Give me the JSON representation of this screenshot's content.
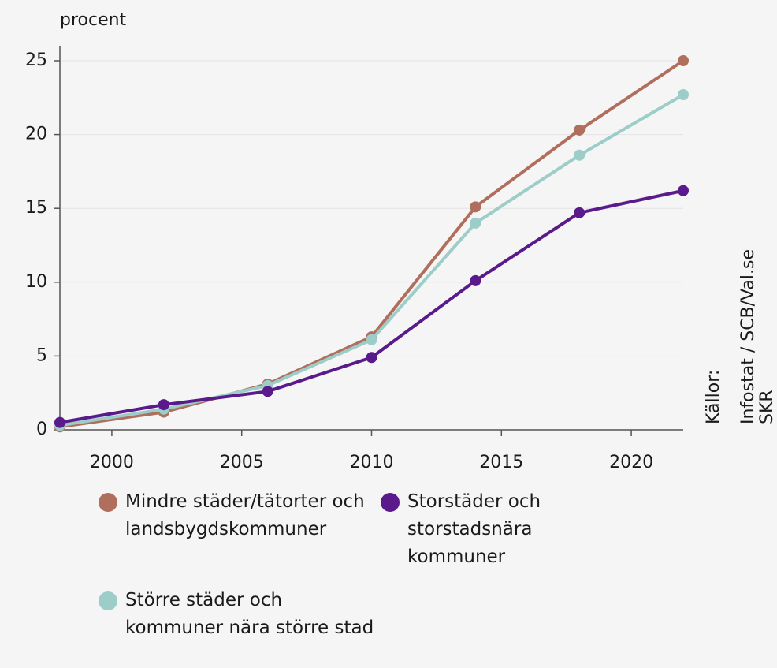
{
  "chart_data": {
    "type": "line",
    "y_label": "procent",
    "source": [
      "Källor:",
      "Infostat / SCB/Val.se",
      "SKR"
    ],
    "x": [
      1998,
      2002,
      2006,
      2010,
      2014,
      2018,
      2022
    ],
    "xlim": [
      1998,
      2022
    ],
    "xticks": [
      2000,
      2005,
      2010,
      2015,
      2020
    ],
    "ylim": [
      0,
      25
    ],
    "yticks": [
      0,
      5,
      10,
      15,
      20,
      25
    ],
    "grid": true,
    "series": [
      {
        "name": "Mindre städer/tätorter och landsbygdskommuner",
        "color": "#b06e5c",
        "values": [
          0.2,
          1.2,
          3.1,
          6.3,
          15.1,
          20.3,
          25.0
        ]
      },
      {
        "name": "Större städer och kommuner nära större stad",
        "color": "#9ccdc8",
        "values": [
          0.3,
          1.4,
          3.0,
          6.1,
          14.0,
          18.6,
          22.7
        ]
      },
      {
        "name": "Storstäder och storstadsnära kommuner",
        "color": "#5a1a8c",
        "values": [
          0.5,
          1.7,
          2.6,
          4.9,
          10.1,
          14.7,
          16.2
        ]
      }
    ]
  }
}
